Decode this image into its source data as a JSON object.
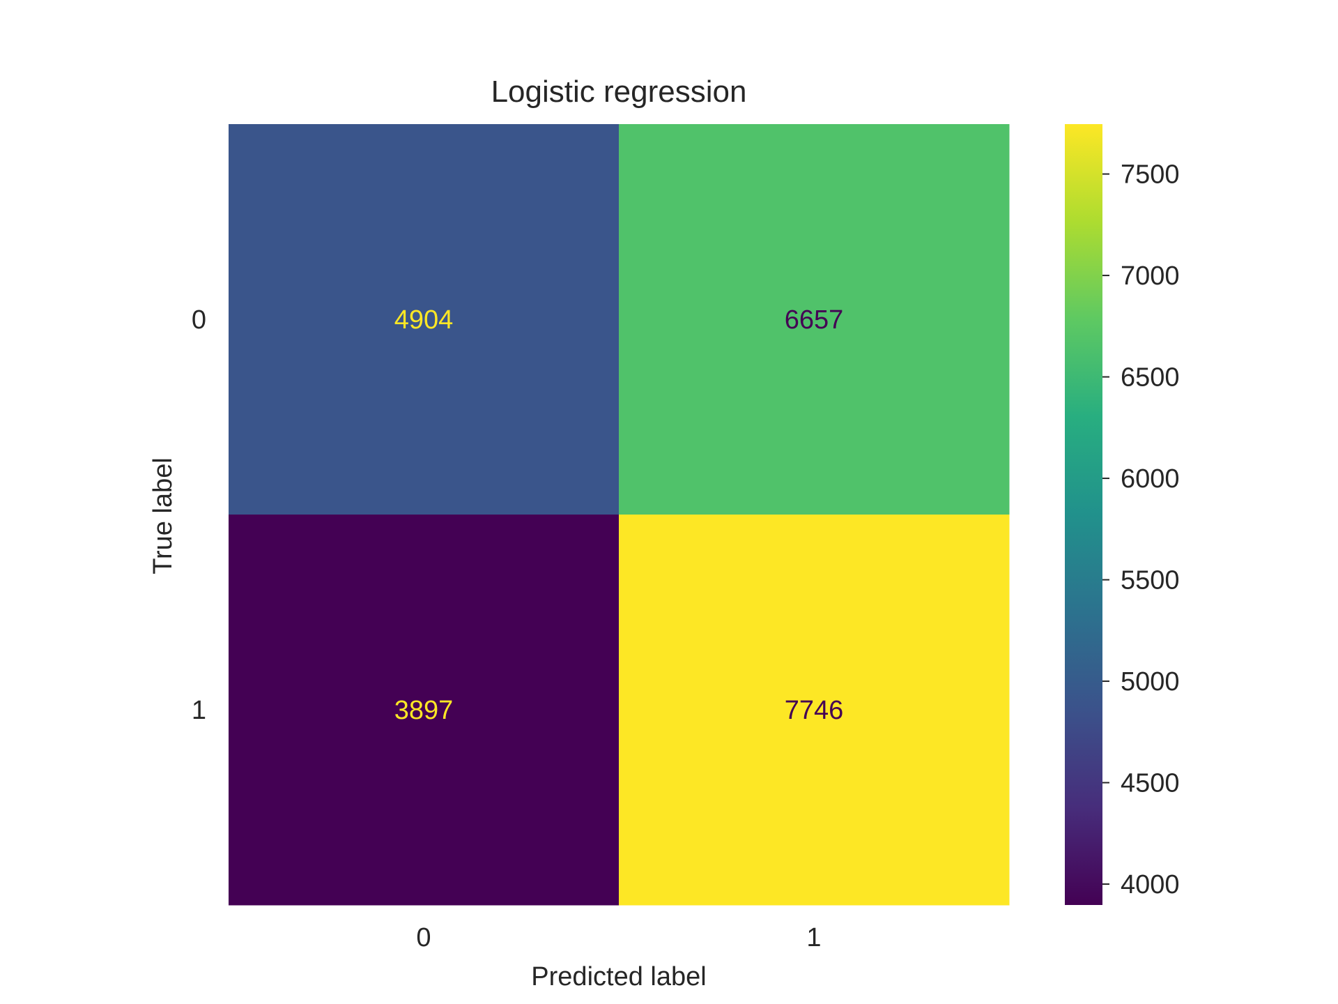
{
  "chart_data": {
    "type": "heatmap",
    "title": "Logistic regression",
    "xlabel": "Predicted label",
    "ylabel": "True label",
    "x_categories": [
      "0",
      "1"
    ],
    "y_categories": [
      "0",
      "1"
    ],
    "values": [
      [
        4904,
        6657
      ],
      [
        3897,
        7746
      ]
    ],
    "colorbar": {
      "colormap": "viridis",
      "range": [
        3897,
        7746
      ],
      "ticks": [
        4000,
        4500,
        5000,
        5500,
        6000,
        6500,
        7000,
        7500
      ]
    },
    "grid": false
  }
}
